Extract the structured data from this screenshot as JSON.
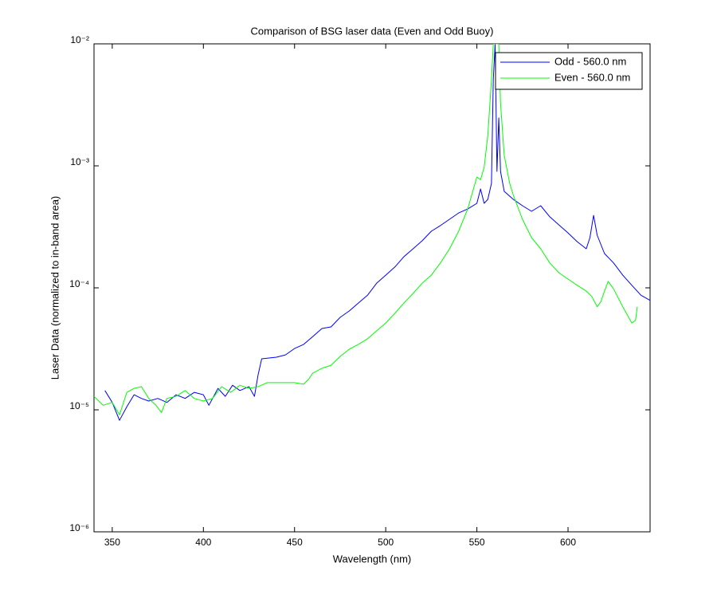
{
  "chart_data": {
    "type": "line",
    "title": "Comparison of BSG laser data (Even and Odd Buoy)",
    "xlabel": "Wavelength (nm)",
    "ylabel": "Laser Data (normalized to in-band area)",
    "xlim": [
      340,
      645
    ],
    "xticks": [
      350,
      400,
      450,
      500,
      550,
      600
    ],
    "ylim": [
      1e-06,
      0.01
    ],
    "yscale": "log",
    "yticks": [
      {
        "value": 1e-06,
        "label": "10⁻⁶"
      },
      {
        "value": 1e-05,
        "label": "10⁻⁵"
      },
      {
        "value": 0.0001,
        "label": "10⁻⁴"
      },
      {
        "value": 0.001,
        "label": "10⁻³"
      },
      {
        "value": 0.01,
        "label": "10⁻²"
      }
    ],
    "legend": "northeast",
    "series": [
      {
        "name": "Odd - 560.0 nm",
        "color": "#0000ff",
        "x": [
          346,
          350,
          354,
          358,
          362,
          366,
          370,
          375,
          380,
          385,
          390,
          395,
          400,
          403,
          408,
          412,
          416,
          420,
          425,
          428,
          430,
          432,
          440,
          445,
          450,
          455,
          460,
          465,
          470,
          475,
          480,
          485,
          490,
          495,
          500,
          505,
          510,
          515,
          520,
          525,
          530,
          535,
          540,
          545,
          550,
          552,
          554,
          556,
          558,
          559,
          560,
          561,
          562,
          563,
          565,
          570,
          575,
          580,
          585,
          590,
          595,
          600,
          605,
          610,
          612,
          614,
          616,
          620,
          625,
          630,
          635,
          640,
          645
        ],
        "values": [
          1.44e-05,
          1.15e-05,
          8.2e-06,
          1.06e-05,
          1.33e-05,
          1.24e-05,
          1.18e-05,
          1.24e-05,
          1.15e-05,
          1.33e-05,
          1.24e-05,
          1.39e-05,
          1.33e-05,
          1.09e-05,
          1.5e-05,
          1.29e-05,
          1.59e-05,
          1.44e-05,
          1.55e-05,
          1.29e-05,
          1.94e-05,
          2.62e-05,
          2.7e-05,
          2.82e-05,
          3.18e-05,
          3.44e-05,
          3.99e-05,
          4.64e-05,
          4.78e-05,
          5.73e-05,
          6.46e-05,
          7.5e-05,
          8.7e-05,
          0.000109,
          0.000127,
          0.000148,
          0.00018,
          0.000209,
          0.000243,
          0.000291,
          0.000324,
          0.000365,
          0.000411,
          0.000443,
          0.000493,
          0.000646,
          0.000493,
          0.000531,
          0.000718,
          0.00508,
          0.01,
          0.0009,
          0.00247,
          0.0009,
          0.000618,
          0.000531,
          0.000471,
          0.000424,
          0.000471,
          0.000382,
          0.000328,
          0.000282,
          0.000239,
          0.000209,
          0.000258,
          0.000393,
          0.00027,
          0.000191,
          0.00016,
          0.000127,
          0.000105,
          8.7e-05,
          7.9e-05
        ]
      },
      {
        "name": "Even - 560.0 nm",
        "color": "#00ff00",
        "x": [
          340,
          345,
          350,
          354,
          358,
          362,
          366,
          370,
          374,
          377,
          380,
          385,
          390,
          395,
          400,
          405,
          410,
          415,
          420,
          425,
          430,
          435,
          440,
          450,
          455,
          458,
          460,
          465,
          470,
          475,
          480,
          485,
          490,
          495,
          500,
          505,
          510,
          515,
          520,
          525,
          530,
          535,
          540,
          545,
          550,
          552,
          554,
          556,
          558,
          559,
          562,
          563,
          565,
          568,
          570,
          575,
          580,
          585,
          590,
          595,
          600,
          605,
          610,
          613,
          616,
          618,
          620,
          622,
          625,
          630,
          635,
          637,
          638
        ],
        "values": [
          1.29e-05,
          1.09e-05,
          1.15e-05,
          9.1e-06,
          1.39e-05,
          1.5e-05,
          1.55e-05,
          1.24e-05,
          1.09e-05,
          9.5e-06,
          1.24e-05,
          1.29e-05,
          1.44e-05,
          1.24e-05,
          1.18e-05,
          1.24e-05,
          1.55e-05,
          1.39e-05,
          1.59e-05,
          1.5e-05,
          1.55e-05,
          1.67e-05,
          1.67e-05,
          1.67e-05,
          1.62e-05,
          1.8e-05,
          2e-05,
          2.19e-05,
          2.32e-05,
          2.74e-05,
          3.14e-05,
          3.44e-05,
          3.82e-05,
          4.44e-05,
          5.15e-05,
          6.18e-05,
          7.5e-05,
          9e-05,
          0.000109,
          0.000127,
          0.00016,
          0.000209,
          0.000291,
          0.000443,
          0.00081,
          0.00077,
          0.00097,
          0.00177,
          0.00508,
          0.01,
          0.01,
          0.00324,
          0.00122,
          0.000718,
          0.000573,
          0.000365,
          0.000258,
          0.000209,
          0.00016,
          0.000133,
          0.000118,
          0.000105,
          9.4e-05,
          8.5e-05,
          7e-05,
          7.7e-05,
          9.4e-05,
          0.000113,
          9.8e-05,
          7e-05,
          5.15e-05,
          5.4e-05,
          7e-05
        ]
      }
    ]
  }
}
